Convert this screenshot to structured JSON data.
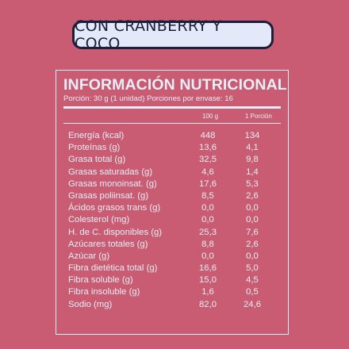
{
  "flavor_label": "CON CRANBERRY Y COCO",
  "nutrition": {
    "title": "INFORMACIÓN NUTRICIONAL",
    "serving": "Porción: 30 g (1 unidad) Porciones por envase: 16",
    "col_100g": "100 g",
    "col_portion": "1 Porción",
    "rows": [
      {
        "label": "Energía (kcal)",
        "per100": "448",
        "portion": "134"
      },
      {
        "label": "Proteínas (g)",
        "per100": "13,6",
        "portion": "4,1"
      },
      {
        "label": "Grasa total (g)",
        "per100": "32,5",
        "portion": "9,8"
      },
      {
        "label": "Grasas saturadas (g)",
        "per100": "4,6",
        "portion": "1,4"
      },
      {
        "label": "Grasas monoinsat. (g)",
        "per100": "17,6",
        "portion": "5,3"
      },
      {
        "label": "Grasas poliinsat. (g)",
        "per100": "8,5",
        "portion": "2,6"
      },
      {
        "label": "Ácidos grasos trans (g)",
        "per100": "0,0",
        "portion": "0,0"
      },
      {
        "label": "Colesterol (mg)",
        "per100": "0,0",
        "portion": "0,0"
      },
      {
        "label": "H. de C. disponibles (g)",
        "per100": "25,3",
        "portion": "7,6"
      },
      {
        "label": "Azúcares totales (g)",
        "per100": "8,8",
        "portion": "2,6"
      },
      {
        "label": "Azúcar (g)",
        "per100": "0,0",
        "portion": "0,0"
      },
      {
        "label": "Fibra dietética total (g)",
        "per100": "16,6",
        "portion": "5,0"
      },
      {
        "label": "Fibra soluble (g)",
        "per100": "15,0",
        "portion": "4,5"
      },
      {
        "label": "Fibra insoluble (g)",
        "per100": "1,6",
        "portion": "0,5"
      },
      {
        "label": "Sodio (mg)",
        "per100": "82,0",
        "portion": "24,6"
      }
    ]
  },
  "colors": {
    "background": "#C95C72",
    "label_fill": "#E3E9F8",
    "label_border": "#1B1F3B",
    "panel_text": "#E8EEF8"
  }
}
